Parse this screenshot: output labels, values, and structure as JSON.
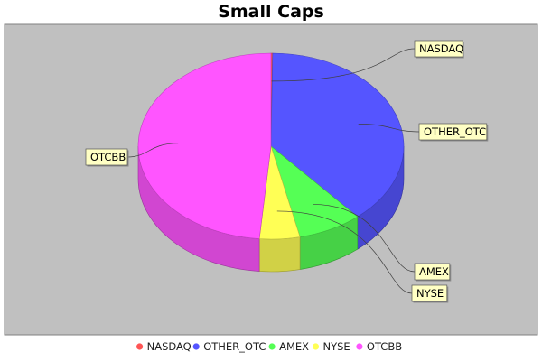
{
  "chart_data": {
    "type": "pie",
    "title": "Small Caps",
    "three_d": true,
    "plot_background": "#c0c0c0",
    "legend_position": "bottom",
    "series": [
      {
        "name": "NASDAQ",
        "value": 0.2,
        "color": "#ff5555"
      },
      {
        "name": "OTHER_OTC",
        "value": 38.5,
        "color": "#5555ff"
      },
      {
        "name": "AMEX",
        "value": 7.8,
        "color": "#55ff55"
      },
      {
        "name": "NYSE",
        "value": 4.9,
        "color": "#ffff55"
      },
      {
        "name": "OTCBB",
        "value": 48.6,
        "color": "#ff55ff"
      }
    ]
  }
}
